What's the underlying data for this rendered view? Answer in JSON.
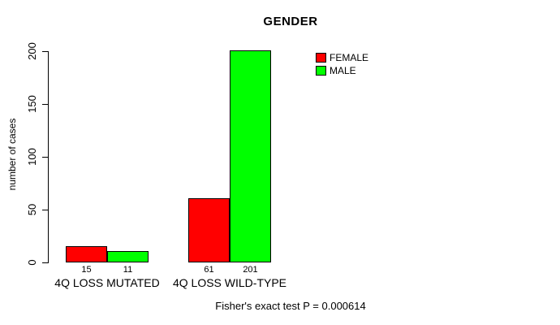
{
  "chart_data": {
    "type": "bar",
    "title": "GENDER",
    "xlabel": "",
    "ylabel": "number of cases",
    "categories": [
      "4Q LOSS MUTATED",
      "4Q LOSS WILD-TYPE"
    ],
    "series": [
      {
        "name": "FEMALE",
        "color": "#ff0000",
        "values": [
          15,
          61
        ]
      },
      {
        "name": "MALE",
        "color": "#00ff00",
        "values": [
          11,
          201
        ]
      }
    ],
    "bar_value_labels": [
      [
        "15",
        "61"
      ],
      [
        "11",
        "201"
      ]
    ],
    "yticks": [
      0,
      50,
      100,
      150,
      200
    ],
    "ylim": [
      0,
      200
    ],
    "grid": false,
    "legend_position": "top-right",
    "annotation": "Fisher's exact test P = 0.000614"
  }
}
